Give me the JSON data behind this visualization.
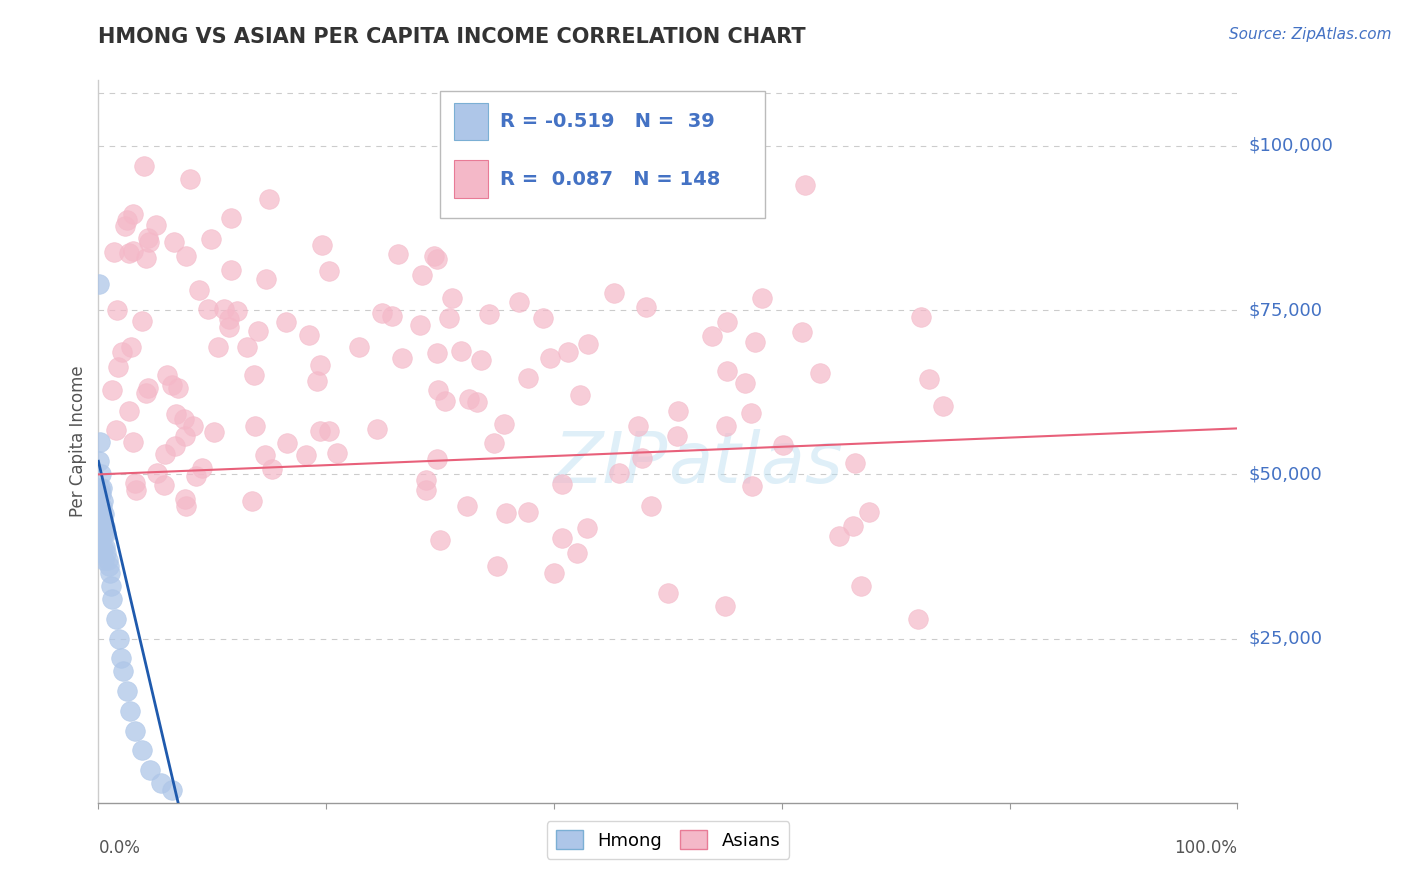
{
  "title": "HMONG VS ASIAN PER CAPITA INCOME CORRELATION CHART",
  "source": "Source: ZipAtlas.com",
  "ylabel": "Per Capita Income",
  "xlim": [
    0,
    1.0
  ],
  "ylim": [
    0,
    110000
  ],
  "yticks_right": [
    25000,
    50000,
    75000,
    100000
  ],
  "ytick_labels_right": [
    "$25,000",
    "$50,000",
    "$75,000",
    "$100,000"
  ],
  "hmong_R": -0.519,
  "hmong_N": 39,
  "asian_R": 0.087,
  "asian_N": 148,
  "hmong_color": "#aec6e8",
  "asian_color": "#f4b8c8",
  "hmong_line_color": "#1f5aad",
  "asian_line_color": "#e8607a",
  "title_color": "#333333",
  "axis_label_color": "#4472c4",
  "source_color": "#4472c4",
  "background_color": "#ffffff",
  "watermark_text": "ZIPAtlas",
  "seed": 42
}
